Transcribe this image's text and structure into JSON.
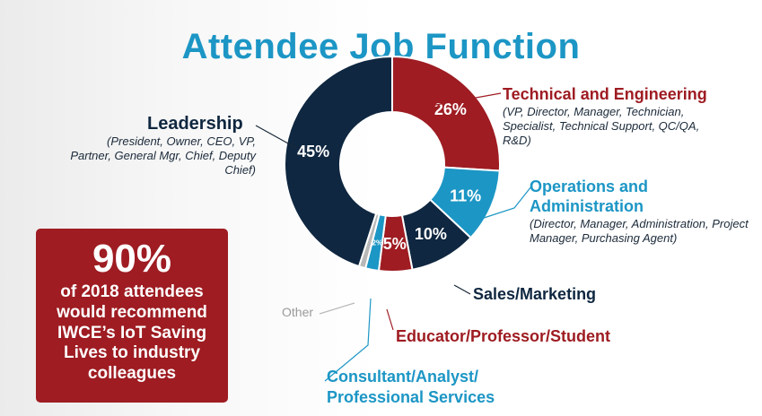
{
  "title": "Attendee Job Function",
  "colors": {
    "title": "#1c96c5",
    "callout_bg": "#9e1c22",
    "connector": "#1b2a3a"
  },
  "callout": {
    "value": "90%",
    "text": "of 2018 attendees would recommend IWCE’s IoT Saving Lives to industry colleagues"
  },
  "chart_data": {
    "type": "pie",
    "title": "Attendee Job Function",
    "donut": true,
    "slices": [
      {
        "name": "Technical and Engineering",
        "value": 26,
        "label": "26%",
        "description": "(VP, Director, Manager, Technician, Specialist, Technical Support, QC/QA, R&D)",
        "color": "#9e1c22",
        "label_color": "#9e1c22"
      },
      {
        "name": "Operations and Administration",
        "value": 11,
        "label": "11%",
        "description": "(Director, Manager, Administration, Project Manager, Purchasing Agent)",
        "color": "#1c96c5",
        "label_color": "#1c96c5"
      },
      {
        "name": "Sales/Marketing",
        "value": 10,
        "label": "10%",
        "description": "",
        "color": "#0f2740",
        "label_color": "#0f2740"
      },
      {
        "name": "Educator/Professor/Student",
        "value": 5,
        "label": "5%",
        "description": "",
        "color": "#9e1c22",
        "label_color": "#9e1c22"
      },
      {
        "name": "Consultant/Analyst/ Professional Services",
        "value": 2,
        "label": "2%",
        "description": "",
        "color": "#1c96c5",
        "label_color": "#1c96c5"
      },
      {
        "name": "Other",
        "value": 1,
        "label": "",
        "description": "",
        "color": "#b8b8b8",
        "label_color": "#9a9a9a"
      },
      {
        "name": "Leadership",
        "value": 45,
        "label": "45%",
        "description": "(President, Owner, CEO, VP, Partner, General Mgr, Chief, Deputy Chief)",
        "color": "#0f2740",
        "label_color": "#0f2740"
      }
    ]
  }
}
